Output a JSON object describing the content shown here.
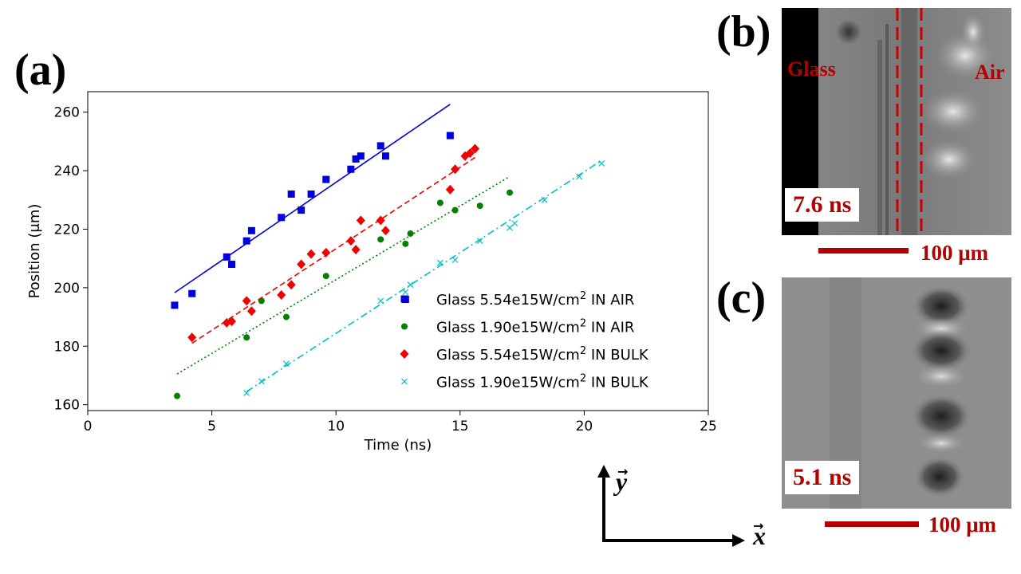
{
  "panels": {
    "a_label": "(a)",
    "b_label": "(b)",
    "c_label": "(c)"
  },
  "panel_b": {
    "glass_label": "Glass",
    "air_label": "Air",
    "time": "7.6 ns",
    "scale": "100 μm"
  },
  "panel_c": {
    "time": "5.1 ns",
    "scale": "100 μm"
  },
  "axes_arrows": {
    "y_label": "y",
    "x_label": "x"
  },
  "colors": {
    "series1": "#0000dd",
    "series2": "#007f00",
    "series3": "#ee0000",
    "series4": "#00bfbf",
    "accent_red": "#b00000"
  },
  "chart_data": {
    "type": "scatter",
    "title": "",
    "xlabel": "Time (ns)",
    "ylabel": "Position (μm)",
    "xlim": [
      0,
      25
    ],
    "ylim": [
      158,
      267
    ],
    "xticks": [
      0,
      5,
      10,
      15,
      20,
      25
    ],
    "yticks": [
      160,
      180,
      200,
      220,
      240,
      260
    ],
    "legend_position": "lower-right",
    "series": [
      {
        "name": "Glass 5.54e15W/cm2 IN AIR",
        "legend_prefix": "Glass 5.54e15W/cm",
        "legend_sup": "2",
        "legend_suffix": " IN AIR",
        "marker": "square",
        "line_style": "solid",
        "color": "#0000dd",
        "x": [
          3.5,
          4.2,
          5.6,
          5.8,
          6.4,
          6.6,
          7.8,
          8.2,
          8.6,
          9.0,
          9.6,
          10.6,
          10.8,
          11.0,
          11.8,
          12.0,
          12.8,
          14.6
        ],
        "y": [
          194,
          198,
          210.5,
          208,
          216,
          219.5,
          224,
          232,
          226.5,
          232,
          237,
          240.5,
          244,
          245,
          248.5,
          245,
          196,
          252
        ],
        "fit": {
          "x": [
            3.5,
            14.6
          ],
          "y": [
            198.3,
            262.7
          ]
        }
      },
      {
        "name": "Glass 1.90e15W/cm2 IN AIR",
        "legend_prefix": "Glass 1.90e15W/cm",
        "legend_sup": "2",
        "legend_suffix": " IN AIR",
        "marker": "circle",
        "line_style": "dotted",
        "color": "#007f00",
        "x": [
          3.6,
          6.4,
          7.0,
          8.0,
          9.6,
          11.8,
          12.8,
          13.0,
          14.2,
          14.8,
          15.8,
          17.0
        ],
        "y": [
          163,
          183,
          195.5,
          190,
          204,
          216.5,
          215,
          218.5,
          229,
          226.5,
          228,
          232.5
        ],
        "fit": {
          "x": [
            3.6,
            17.0
          ],
          "y": [
            170.5,
            238
          ]
        }
      },
      {
        "name": "Glass 5.54e15W/cm2 IN BULK",
        "legend_prefix": "Glass 5.54e15W/cm",
        "legend_sup": "2",
        "legend_suffix": " IN BULK",
        "marker": "diamond",
        "line_style": "dashed",
        "color": "#ee0000",
        "x": [
          4.2,
          5.6,
          5.8,
          6.4,
          6.6,
          7.8,
          8.2,
          8.6,
          9.0,
          9.6,
          10.6,
          10.8,
          11.0,
          11.8,
          12.0,
          14.6,
          14.8,
          15.2,
          15.4,
          15.6
        ],
        "y": [
          183,
          188,
          188.5,
          195.5,
          192,
          197.5,
          201,
          208,
          211.5,
          212,
          216,
          213,
          223,
          223,
          219.5,
          233.5,
          240.5,
          245,
          246,
          247.5
        ],
        "fit": {
          "x": [
            4.2,
            15.6
          ],
          "y": [
            181,
            244.5
          ]
        }
      },
      {
        "name": "Glass 1.90e15W/cm2 IN BULK",
        "legend_prefix": "Glass 1.90e15W/cm",
        "legend_sup": "2",
        "legend_suffix": " IN BULK",
        "marker": "x",
        "line_style": "dashdot",
        "color": "#00bfbf",
        "x": [
          6.4,
          7.0,
          8.0,
          11.8,
          12.8,
          13.0,
          14.2,
          14.8,
          15.8,
          17.0,
          17.2,
          18.4,
          19.8,
          20.7
        ],
        "y": [
          164,
          168,
          174,
          195.5,
          198.5,
          201,
          208.5,
          209.5,
          216,
          220.5,
          222,
          230,
          238,
          242.5
        ],
        "fit": {
          "x": [
            6.4,
            20.7
          ],
          "y": [
            164.5,
            243.5
          ]
        }
      }
    ]
  }
}
